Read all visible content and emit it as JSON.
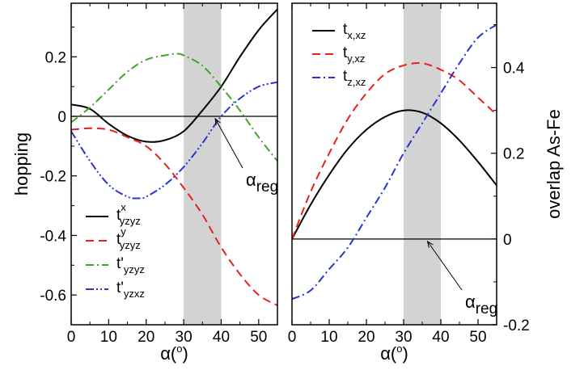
{
  "chart_data": [
    {
      "type": "line",
      "xlabel": "α(",
      "xlabel_sup": "o",
      "xlabel_tail": ")",
      "ylabel": "hopping",
      "xlim": [
        0,
        55
      ],
      "ylim": [
        -0.7,
        0.38
      ],
      "xticks": [
        "0",
        "10",
        "20",
        "30",
        "40",
        "50"
      ],
      "yticks": [
        "0.2",
        "0",
        "-0.2",
        "-0.4",
        "-0.6"
      ],
      "shaded_region": [
        30,
        40
      ],
      "grid": false,
      "legend_position": "lower-left",
      "annotation": {
        "base": "α",
        "sub": "reg",
        "points_to": [
          38,
          0
        ]
      },
      "series": [
        {
          "name": "t",
          "sup": "x",
          "sub": "yzyz",
          "color": "#000000",
          "dash": "solid",
          "x": [
            0,
            5,
            10,
            15,
            20,
            25,
            30,
            35,
            40,
            45,
            50,
            55
          ],
          "y": [
            0.04,
            0.025,
            -0.025,
            -0.065,
            -0.085,
            -0.08,
            -0.05,
            0.02,
            0.1,
            0.2,
            0.29,
            0.36
          ]
        },
        {
          "name": "t",
          "sup": "y",
          "sub": "yzyz",
          "color": "#e8201a",
          "dash": "dashed",
          "x": [
            0,
            5,
            10,
            15,
            20,
            25,
            30,
            35,
            40,
            45,
            50,
            55
          ],
          "y": [
            -0.045,
            -0.04,
            -0.045,
            -0.07,
            -0.1,
            -0.16,
            -0.24,
            -0.33,
            -0.44,
            -0.53,
            -0.6,
            -0.635
          ]
        },
        {
          "name": "t'",
          "sup": "",
          "sub": "yzyz",
          "color": "#3fa62a",
          "dash": "dashdot",
          "x": [
            0,
            5,
            10,
            15,
            20,
            25,
            28,
            30,
            35,
            40,
            45,
            50,
            55
          ],
          "y": [
            -0.02,
            0.03,
            0.09,
            0.15,
            0.19,
            0.205,
            0.21,
            0.205,
            0.17,
            0.1,
            0.02,
            -0.07,
            -0.15
          ]
        },
        {
          "name": "t'",
          "sup": "",
          "sub": "yzxz",
          "color": "#2a34d6",
          "dash": "dashdotdot",
          "x": [
            0,
            5,
            10,
            15,
            18,
            20,
            25,
            30,
            35,
            40,
            45,
            50,
            55
          ],
          "y": [
            -0.05,
            -0.15,
            -0.23,
            -0.27,
            -0.275,
            -0.27,
            -0.23,
            -0.17,
            -0.09,
            0.0,
            0.06,
            0.1,
            0.115
          ]
        }
      ]
    },
    {
      "type": "line",
      "xlabel": "α(",
      "xlabel_sup": "o",
      "xlabel_tail": ")",
      "ylabel": "overlap As-Fe",
      "xlim": [
        0,
        55
      ],
      "ylim": [
        -0.2,
        0.55
      ],
      "xticks": [
        "0",
        "10",
        "20",
        "30",
        "40",
        "50"
      ],
      "yticks": [
        "0.4",
        "0.2",
        "0",
        "-0.2"
      ],
      "shaded_region": [
        30,
        40
      ],
      "grid": false,
      "legend_position": "top-left",
      "annotation": {
        "base": "α",
        "sub": "reg",
        "points_to": [
          36,
          0
        ]
      },
      "series": [
        {
          "name": "t",
          "sup": "",
          "sub": "x,xz",
          "color": "#000000",
          "dash": "solid",
          "x": [
            0,
            5,
            10,
            15,
            20,
            25,
            30,
            35,
            40,
            45,
            50,
            55
          ],
          "y": [
            0.0,
            0.08,
            0.15,
            0.21,
            0.255,
            0.285,
            0.3,
            0.295,
            0.27,
            0.23,
            0.18,
            0.125
          ]
        },
        {
          "name": "t",
          "sup": "",
          "sub": "y,xz",
          "color": "#e8201a",
          "dash": "dashed",
          "x": [
            0,
            5,
            10,
            15,
            20,
            25,
            30,
            35,
            40,
            45,
            50,
            55
          ],
          "y": [
            0.0,
            0.11,
            0.2,
            0.28,
            0.34,
            0.385,
            0.405,
            0.41,
            0.395,
            0.37,
            0.33,
            0.29
          ]
        },
        {
          "name": "t",
          "sup": "",
          "sub": "z,xz",
          "color": "#2a34d6",
          "dash": "dashdot",
          "x": [
            0,
            5,
            10,
            15,
            20,
            25,
            30,
            35,
            40,
            45,
            50,
            55
          ],
          "y": [
            -0.14,
            -0.12,
            -0.07,
            -0.02,
            0.05,
            0.12,
            0.2,
            0.27,
            0.34,
            0.41,
            0.47,
            0.5
          ]
        }
      ]
    }
  ]
}
